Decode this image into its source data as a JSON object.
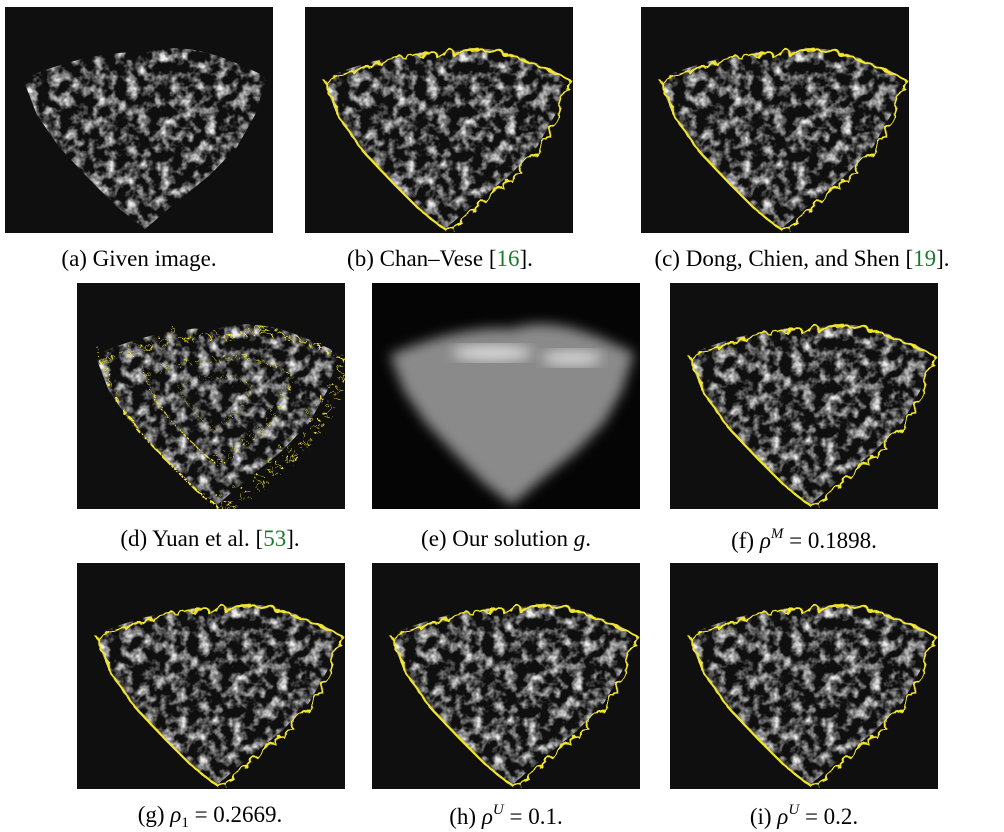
{
  "figure": {
    "panels": [
      {
        "segments": [
          {
            "text": "(a) Given image."
          }
        ]
      },
      {
        "segments": [
          {
            "text": "(b) Chan–Vese ["
          },
          {
            "text": "16",
            "style": "cite"
          },
          {
            "text": "]."
          }
        ]
      },
      {
        "segments": [
          {
            "text": "(c) Dong, Chien, and Shen ["
          },
          {
            "text": "19",
            "style": "cite"
          },
          {
            "text": "]."
          }
        ]
      },
      {
        "segments": [
          {
            "text": "(d) Yuan et al. ["
          },
          {
            "text": "53",
            "style": "cite"
          },
          {
            "text": "]."
          }
        ]
      },
      {
        "segments": [
          {
            "text": "(e) Our solution "
          },
          {
            "text": "g",
            "style": "italic"
          },
          {
            "text": "."
          }
        ]
      },
      {
        "segments": [
          {
            "text": "(f) "
          },
          {
            "text": "ρ",
            "style": "italic"
          },
          {
            "text": "M",
            "style": "sup"
          },
          {
            "text": " = 0.1898."
          }
        ]
      },
      {
        "segments": [
          {
            "text": "(g) "
          },
          {
            "text": "ρ",
            "style": "italic"
          },
          {
            "text": "1",
            "style": "sub"
          },
          {
            "text": " = 0.2669."
          }
        ]
      },
      {
        "segments": [
          {
            "text": "(h) "
          },
          {
            "text": "ρ",
            "style": "italic"
          },
          {
            "text": "U",
            "style": "sup"
          },
          {
            "text": " = 0.1."
          }
        ]
      },
      {
        "segments": [
          {
            "text": "(i) "
          },
          {
            "text": "ρ",
            "style": "italic"
          },
          {
            "text": "U",
            "style": "sup"
          },
          {
            "text": " = 0.2."
          }
        ]
      }
    ]
  }
}
